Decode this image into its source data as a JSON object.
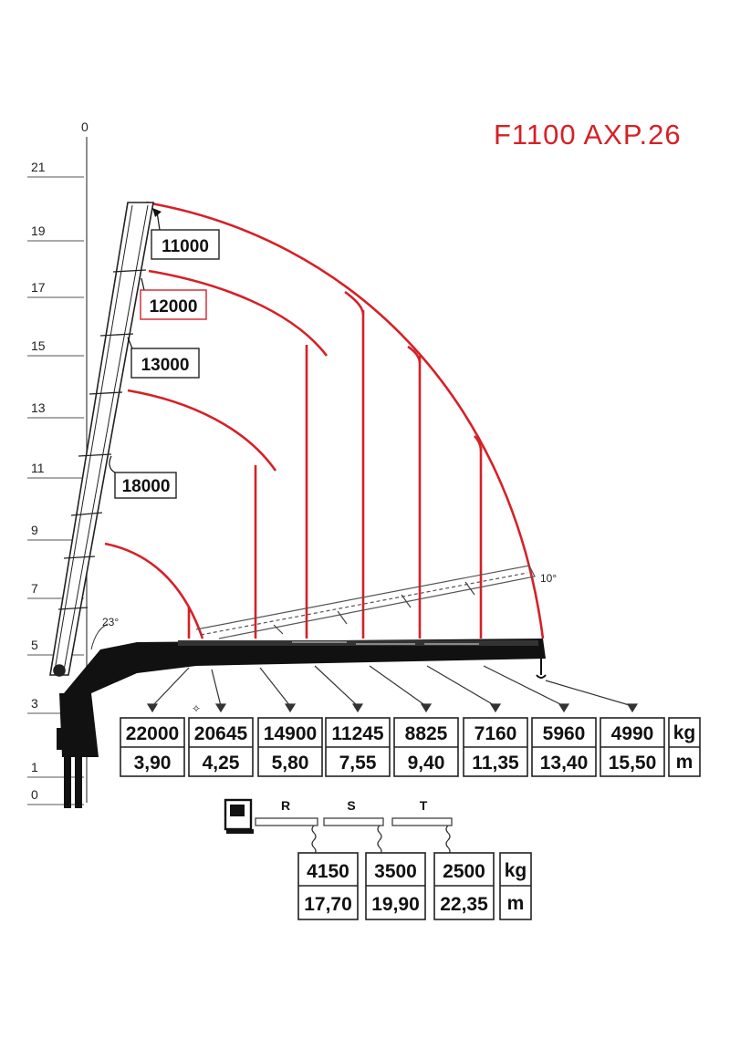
{
  "title": "F1100 AXP.26",
  "colors": {
    "curve": "#d62027",
    "title": "#d62027",
    "ink": "#111111"
  },
  "height_scale": {
    "top_tick": "0",
    "ticks": [
      "21",
      "19",
      "17",
      "15",
      "13",
      "11",
      "9",
      "7",
      "5",
      "3",
      "1",
      "0"
    ]
  },
  "envelope_loads": [
    "11000",
    "12000",
    "13000",
    "18000"
  ],
  "angles": {
    "lower": "23°",
    "upper": "10°"
  },
  "main_table": {
    "capacities_kg": [
      "22000",
      "20645",
      "14900",
      "11245",
      "8825",
      "7160",
      "5960",
      "4990"
    ],
    "reach_m": [
      "3,90",
      "4,25",
      "5,80",
      "7,55",
      "9,40",
      "11,35",
      "13,40",
      "15,50"
    ],
    "unit_kg": "kg",
    "unit_m": "m"
  },
  "extensions": {
    "labels": [
      "R",
      "S",
      "T"
    ],
    "capacities_kg": [
      "4150",
      "3500",
      "2500"
    ],
    "reach_m": [
      "17,70",
      "19,90",
      "22,35"
    ],
    "unit_kg": "kg",
    "unit_m": "m"
  }
}
